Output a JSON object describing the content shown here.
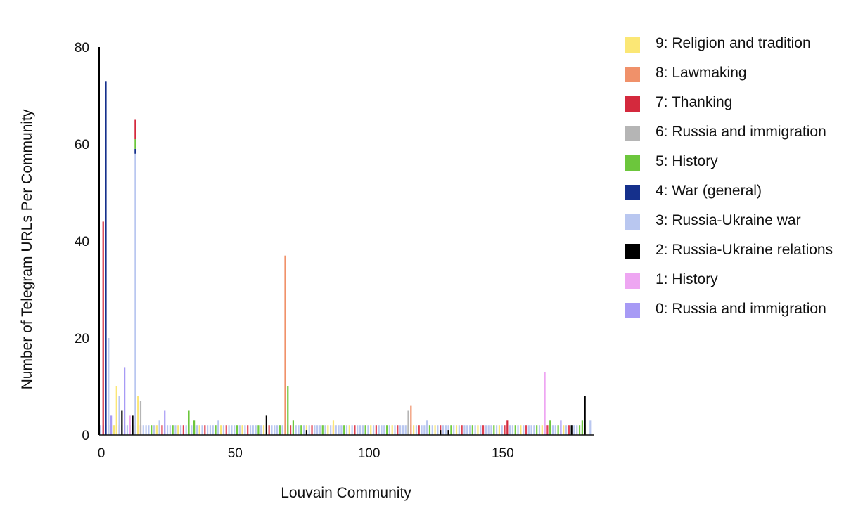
{
  "chart_data": {
    "type": "bar",
    "stacked": true,
    "xlabel": "Louvain Community",
    "ylabel": "Number of Telegram URLs Per Community",
    "xlim": [
      0,
      185
    ],
    "ylim": [
      0,
      80
    ],
    "x_ticks": [
      0,
      50,
      100,
      150
    ],
    "y_ticks": [
      0,
      20,
      40,
      60,
      80
    ],
    "grid": false,
    "legend_position": "right",
    "baseline_value": 2,
    "baseline_count": 182,
    "baseline_color_cycle": [
      "#b9c7f0",
      "#b9c7f0",
      "#b9c7f0",
      "#6fcb3f",
      "#b9c7f0",
      "#f7e675",
      "#b9c7f0",
      "#e04050"
    ],
    "series": [
      {
        "topic": 9,
        "name": "9: Religion and tradition",
        "color": "#fbe775"
      },
      {
        "topic": 8,
        "name": "8: Lawmaking",
        "color": "#f0916a"
      },
      {
        "topic": 7,
        "name": "7: Thanking",
        "color": "#d4293d"
      },
      {
        "topic": 6,
        "name": "6: Russia and immigration",
        "color": "#b5b5b5"
      },
      {
        "topic": 5,
        "name": "5: History",
        "color": "#6cc63c"
      },
      {
        "topic": 4,
        "name": "4: War (general)",
        "color": "#15308c"
      },
      {
        "topic": 3,
        "name": "3: Russia-Ukraine war",
        "color": "#b9c7f0"
      },
      {
        "topic": 2,
        "name": "2: Russia-Ukraine relations",
        "color": "#000000"
      },
      {
        "topic": 1,
        "name": "1: History",
        "color": "#eea6f2"
      },
      {
        "topic": 0,
        "name": "0: Russia and immigration",
        "color": "#a79af5"
      }
    ],
    "bars": [
      {
        "community": 1,
        "topic": 7,
        "value": 44
      },
      {
        "community": 2,
        "topic": 4,
        "value": 73
      },
      {
        "community": 3,
        "topic": 3,
        "value": 20
      },
      {
        "community": 4,
        "topic": 0,
        "value": 4
      },
      {
        "community": 6,
        "topic": 9,
        "value": 10
      },
      {
        "community": 7,
        "topic": 3,
        "value": 8
      },
      {
        "community": 8,
        "topic": 2,
        "value": 5
      },
      {
        "community": 9,
        "topic": 0,
        "value": 14
      },
      {
        "community": 11,
        "topic": 1,
        "value": 4
      },
      {
        "community": 12,
        "topic": 2,
        "value": 4
      },
      {
        "community": 13,
        "topic": 3,
        "value": 58
      },
      {
        "community": 13,
        "topic": 4,
        "value": 1
      },
      {
        "community": 13,
        "topic": 5,
        "value": 2
      },
      {
        "community": 13,
        "topic": 7,
        "value": 4
      },
      {
        "community": 14,
        "topic": 9,
        "value": 8
      },
      {
        "community": 15,
        "topic": 6,
        "value": 7
      },
      {
        "community": 22,
        "topic": 3,
        "value": 3
      },
      {
        "community": 24,
        "topic": 0,
        "value": 5
      },
      {
        "community": 33,
        "topic": 5,
        "value": 5
      },
      {
        "community": 35,
        "topic": 5,
        "value": 3
      },
      {
        "community": 44,
        "topic": 3,
        "value": 3
      },
      {
        "community": 62,
        "topic": 2,
        "value": 4
      },
      {
        "community": 69,
        "topic": 8,
        "value": 37
      },
      {
        "community": 70,
        "topic": 5,
        "value": 10
      },
      {
        "community": 72,
        "topic": 5,
        "value": 3
      },
      {
        "community": 77,
        "topic": 2,
        "value": 1
      },
      {
        "community": 87,
        "topic": 9,
        "value": 3
      },
      {
        "community": 115,
        "topic": 6,
        "value": 5
      },
      {
        "community": 116,
        "topic": 8,
        "value": 6
      },
      {
        "community": 122,
        "topic": 3,
        "value": 3
      },
      {
        "community": 127,
        "topic": 2,
        "value": 1
      },
      {
        "community": 130,
        "topic": 2,
        "value": 1
      },
      {
        "community": 152,
        "topic": 7,
        "value": 3
      },
      {
        "community": 166,
        "topic": 1,
        "value": 13
      },
      {
        "community": 168,
        "topic": 5,
        "value": 3
      },
      {
        "community": 172,
        "topic": 0,
        "value": 3
      },
      {
        "community": 176,
        "topic": 2,
        "value": 2
      },
      {
        "community": 180,
        "topic": 5,
        "value": 3
      },
      {
        "community": 181,
        "topic": 2,
        "value": 8
      },
      {
        "community": 183,
        "topic": 3,
        "value": 3
      }
    ]
  },
  "legend": [
    {
      "label": "9: Religion and tradition",
      "color": "#fbe775"
    },
    {
      "label": "8: Lawmaking",
      "color": "#f0916a"
    },
    {
      "label": "7: Thanking",
      "color": "#d4293d"
    },
    {
      "label": "6: Russia and immigration",
      "color": "#b5b5b5"
    },
    {
      "label": "5: History",
      "color": "#6cc63c"
    },
    {
      "label": "4: War (general)",
      "color": "#15308c"
    },
    {
      "label": "3: Russia-Ukraine war",
      "color": "#b9c7f0"
    },
    {
      "label": "2: Russia-Ukraine relations",
      "color": "#000000"
    },
    {
      "label": "1: History",
      "color": "#eea6f2"
    },
    {
      "label": "0: Russia and immigration",
      "color": "#a79af5"
    }
  ]
}
